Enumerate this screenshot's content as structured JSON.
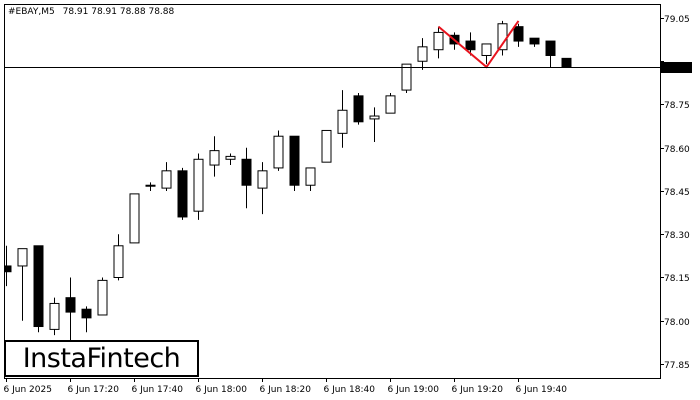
{
  "header": {
    "symbol": "#EBAY,M5",
    "ohlc": "78.91 78.91 78.88 78.88"
  },
  "logo": {
    "text": "InstaFintech"
  },
  "colors": {
    "bull_fill": "#ffffff",
    "bear_fill": "#000000",
    "candle_stroke": "#000000",
    "pattern_line": "#e8141e",
    "price_line": "#000000",
    "price_tag_bg": "#000000",
    "price_tag_text": "#ffffff"
  },
  "chart_data": {
    "type": "candlestick",
    "symbol": "#EBAY",
    "timeframe": "M5",
    "ylim": [
      77.8,
      79.1
    ],
    "y_ticks": [
      "79.05",
      "78.90",
      "78.75",
      "78.60",
      "78.45",
      "78.30",
      "78.15",
      "78.00",
      "77.85"
    ],
    "x_ticks": [
      "6 Jun 2025",
      "6 Jun 17:20",
      "6 Jun 17:40",
      "6 Jun 18:00",
      "6 Jun 18:20",
      "6 Jun 18:40",
      "6 Jun 19:00",
      "6 Jun 19:20",
      "6 Jun 19:40"
    ],
    "current_price": "78.88",
    "grid": false,
    "candles": [
      {
        "o": 78.19,
        "h": 78.26,
        "l": 78.12,
        "c": 78.17
      },
      {
        "o": 78.19,
        "h": 78.25,
        "l": 78.0,
        "c": 78.25
      },
      {
        "o": 78.26,
        "h": 78.26,
        "l": 77.96,
        "c": 77.98
      },
      {
        "o": 77.97,
        "h": 78.08,
        "l": 77.95,
        "c": 78.06
      },
      {
        "o": 78.08,
        "h": 78.15,
        "l": 77.93,
        "c": 78.03
      },
      {
        "o": 78.04,
        "h": 78.05,
        "l": 77.96,
        "c": 78.01
      },
      {
        "o": 78.02,
        "h": 78.15,
        "l": 78.02,
        "c": 78.14
      },
      {
        "o": 78.15,
        "h": 78.3,
        "l": 78.14,
        "c": 78.26
      },
      {
        "o": 78.27,
        "h": 78.44,
        "l": 78.27,
        "c": 78.44
      },
      {
        "o": 78.47,
        "h": 78.48,
        "l": 78.45,
        "c": 78.47
      },
      {
        "o": 78.46,
        "h": 78.55,
        "l": 78.45,
        "c": 78.52
      },
      {
        "o": 78.52,
        "h": 78.53,
        "l": 78.35,
        "c": 78.36
      },
      {
        "o": 78.38,
        "h": 78.58,
        "l": 78.35,
        "c": 78.56
      },
      {
        "o": 78.54,
        "h": 78.64,
        "l": 78.5,
        "c": 78.59
      },
      {
        "o": 78.56,
        "h": 78.58,
        "l": 78.54,
        "c": 78.57
      },
      {
        "o": 78.56,
        "h": 78.6,
        "l": 78.39,
        "c": 78.47
      },
      {
        "o": 78.46,
        "h": 78.55,
        "l": 78.37,
        "c": 78.52
      },
      {
        "o": 78.53,
        "h": 78.66,
        "l": 78.52,
        "c": 78.64
      },
      {
        "o": 78.64,
        "h": 78.64,
        "l": 78.45,
        "c": 78.47
      },
      {
        "o": 78.47,
        "h": 78.53,
        "l": 78.45,
        "c": 78.53
      },
      {
        "o": 78.55,
        "h": 78.66,
        "l": 78.55,
        "c": 78.66
      },
      {
        "o": 78.65,
        "h": 78.8,
        "l": 78.6,
        "c": 78.73
      },
      {
        "o": 78.78,
        "h": 78.79,
        "l": 78.68,
        "c": 78.69
      },
      {
        "o": 78.7,
        "h": 78.74,
        "l": 78.62,
        "c": 78.71
      },
      {
        "o": 78.72,
        "h": 78.79,
        "l": 78.72,
        "c": 78.78
      },
      {
        "o": 78.8,
        "h": 78.89,
        "l": 78.79,
        "c": 78.89
      },
      {
        "o": 78.9,
        "h": 78.98,
        "l": 78.87,
        "c": 78.95
      },
      {
        "o": 78.94,
        "h": 79.02,
        "l": 78.91,
        "c": 79.0
      },
      {
        "o": 78.99,
        "h": 79.0,
        "l": 78.94,
        "c": 78.96
      },
      {
        "o": 78.97,
        "h": 79.0,
        "l": 78.92,
        "c": 78.94
      },
      {
        "o": 78.92,
        "h": 78.96,
        "l": 78.89,
        "c": 78.96
      },
      {
        "o": 78.94,
        "h": 79.04,
        "l": 78.92,
        "c": 79.03
      },
      {
        "o": 79.02,
        "h": 79.03,
        "l": 78.95,
        "c": 78.97
      },
      {
        "o": 78.98,
        "h": 78.98,
        "l": 78.95,
        "c": 78.96
      },
      {
        "o": 78.97,
        "h": 78.97,
        "l": 78.88,
        "c": 78.92
      },
      {
        "o": 78.91,
        "h": 78.91,
        "l": 78.88,
        "c": 78.88
      }
    ],
    "pattern": {
      "name": "double top",
      "points": [
        {
          "candle": 27,
          "price": 79.02
        },
        {
          "candle": 30,
          "price": 78.88
        },
        {
          "candle": 32,
          "price": 79.04
        }
      ]
    }
  }
}
